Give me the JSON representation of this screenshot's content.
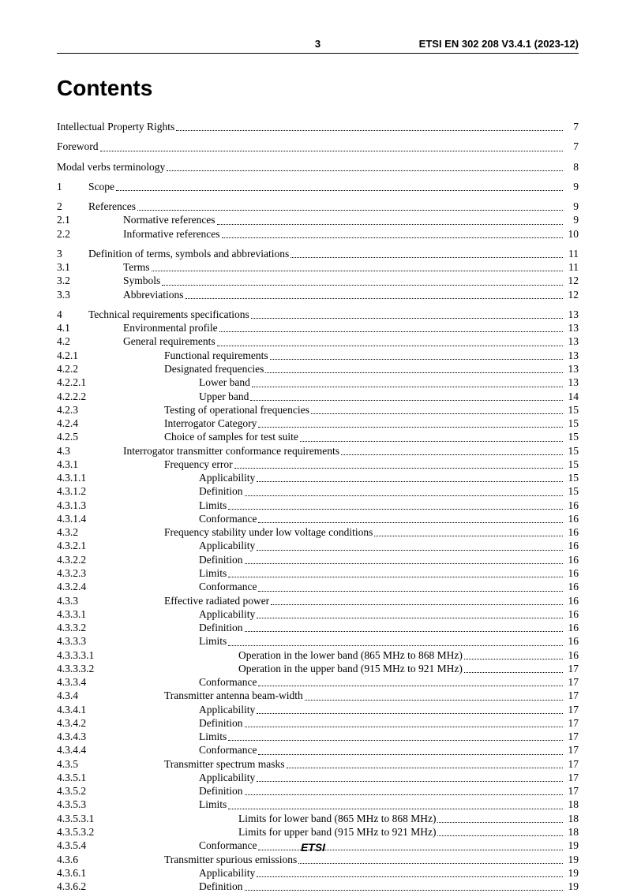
{
  "header": {
    "page_number": "3",
    "doc_id": "ETSI EN 302 208 V3.4.1 (2023-12)"
  },
  "title": "Contents",
  "footer": "ETSI",
  "indents": {
    "l0": 0,
    "l1": 28,
    "l2": 56,
    "l3": 80,
    "l4": 110
  },
  "num_col_width": {
    "front": 0,
    "s1": 40,
    "s2": 56,
    "s3": 80,
    "s4": 100,
    "s5": 120
  },
  "toc": [
    {
      "block": [
        {
          "num": "",
          "title": "Intellectual Property Rights",
          "page": "7",
          "indent": "l0",
          "numw": "front"
        }
      ]
    },
    {
      "block": [
        {
          "num": "",
          "title": "Foreword",
          "page": "7",
          "indent": "l0",
          "numw": "front"
        }
      ]
    },
    {
      "block": [
        {
          "num": "",
          "title": "Modal verbs terminology",
          "page": "8",
          "indent": "l0",
          "numw": "front"
        }
      ]
    },
    {
      "block": [
        {
          "num": "1",
          "title": "Scope",
          "page": "9",
          "indent": "l0",
          "numw": "s1"
        }
      ]
    },
    {
      "block": [
        {
          "num": "2",
          "title": "References",
          "page": "9",
          "indent": "l0",
          "numw": "s1"
        },
        {
          "num": "2.1",
          "title": "Normative references",
          "page": "9",
          "indent": "l1",
          "numw": "s2"
        },
        {
          "num": "2.2",
          "title": "Informative references",
          "page": "10",
          "indent": "l1",
          "numw": "s2"
        }
      ]
    },
    {
      "block": [
        {
          "num": "3",
          "title": "Definition of terms, symbols and abbreviations",
          "page": "11",
          "indent": "l0",
          "numw": "s1"
        },
        {
          "num": "3.1",
          "title": "Terms",
          "page": "11",
          "indent": "l1",
          "numw": "s2"
        },
        {
          "num": "3.2",
          "title": "Symbols",
          "page": "12",
          "indent": "l1",
          "numw": "s2"
        },
        {
          "num": "3.3",
          "title": "Abbreviations",
          "page": "12",
          "indent": "l1",
          "numw": "s2"
        }
      ]
    },
    {
      "block": [
        {
          "num": "4",
          "title": "Technical requirements specifications",
          "page": "13",
          "indent": "l0",
          "numw": "s1"
        },
        {
          "num": "4.1",
          "title": "Environmental profile",
          "page": "13",
          "indent": "l1",
          "numw": "s2"
        },
        {
          "num": "4.2",
          "title": "General requirements",
          "page": "13",
          "indent": "l1",
          "numw": "s2"
        },
        {
          "num": "4.2.1",
          "title": "Functional requirements",
          "page": "13",
          "indent": "l2",
          "numw": "s3"
        },
        {
          "num": "4.2.2",
          "title": "Designated frequencies",
          "page": "13",
          "indent": "l2",
          "numw": "s3"
        },
        {
          "num": "4.2.2.1",
          "title": "Lower band",
          "page": "13",
          "indent": "l3",
          "numw": "s4"
        },
        {
          "num": "4.2.2.2",
          "title": "Upper band",
          "page": "14",
          "indent": "l3",
          "numw": "s4"
        },
        {
          "num": "4.2.3",
          "title": "Testing of operational frequencies",
          "page": "15",
          "indent": "l2",
          "numw": "s3"
        },
        {
          "num": "4.2.4",
          "title": "Interrogator Category",
          "page": "15",
          "indent": "l2",
          "numw": "s3"
        },
        {
          "num": "4.2.5",
          "title": "Choice of samples for test suite",
          "page": "15",
          "indent": "l2",
          "numw": "s3"
        },
        {
          "num": "4.3",
          "title": "Interrogator transmitter conformance requirements",
          "page": "15",
          "indent": "l1",
          "numw": "s2"
        },
        {
          "num": "4.3.1",
          "title": "Frequency error",
          "page": "15",
          "indent": "l2",
          "numw": "s3"
        },
        {
          "num": "4.3.1.1",
          "title": "Applicability",
          "page": "15",
          "indent": "l3",
          "numw": "s4"
        },
        {
          "num": "4.3.1.2",
          "title": "Definition",
          "page": "15",
          "indent": "l3",
          "numw": "s4"
        },
        {
          "num": "4.3.1.3",
          "title": "Limits",
          "page": "16",
          "indent": "l3",
          "numw": "s4"
        },
        {
          "num": "4.3.1.4",
          "title": "Conformance",
          "page": "16",
          "indent": "l3",
          "numw": "s4"
        },
        {
          "num": "4.3.2",
          "title": "Frequency stability under low voltage conditions",
          "page": "16",
          "indent": "l2",
          "numw": "s3"
        },
        {
          "num": "4.3.2.1",
          "title": "Applicability",
          "page": "16",
          "indent": "l3",
          "numw": "s4"
        },
        {
          "num": "4.3.2.2",
          "title": "Definition",
          "page": "16",
          "indent": "l3",
          "numw": "s4"
        },
        {
          "num": "4.3.2.3",
          "title": "Limits",
          "page": "16",
          "indent": "l3",
          "numw": "s4"
        },
        {
          "num": "4.3.2.4",
          "title": "Conformance",
          "page": "16",
          "indent": "l3",
          "numw": "s4"
        },
        {
          "num": "4.3.3",
          "title": "Effective radiated power",
          "page": "16",
          "indent": "l2",
          "numw": "s3"
        },
        {
          "num": "4.3.3.1",
          "title": "Applicability",
          "page": "16",
          "indent": "l3",
          "numw": "s4"
        },
        {
          "num": "4.3.3.2",
          "title": "Definition",
          "page": "16",
          "indent": "l3",
          "numw": "s4"
        },
        {
          "num": "4.3.3.3",
          "title": "Limits",
          "page": "16",
          "indent": "l3",
          "numw": "s4"
        },
        {
          "num": "4.3.3.3.1",
          "title": "Operation in the lower band (865 MHz to 868 MHz)",
          "page": "16",
          "indent": "l4",
          "numw": "s5"
        },
        {
          "num": "4.3.3.3.2",
          "title": "Operation in the upper band (915 MHz to 921 MHz)",
          "page": "17",
          "indent": "l4",
          "numw": "s5"
        },
        {
          "num": "4.3.3.4",
          "title": "Conformance",
          "page": "17",
          "indent": "l3",
          "numw": "s4"
        },
        {
          "num": "4.3.4",
          "title": "Transmitter antenna beam-width",
          "page": "17",
          "indent": "l2",
          "numw": "s3"
        },
        {
          "num": "4.3.4.1",
          "title": "Applicability",
          "page": "17",
          "indent": "l3",
          "numw": "s4"
        },
        {
          "num": "4.3.4.2",
          "title": "Definition",
          "page": "17",
          "indent": "l3",
          "numw": "s4"
        },
        {
          "num": "4.3.4.3",
          "title": "Limits",
          "page": "17",
          "indent": "l3",
          "numw": "s4"
        },
        {
          "num": "4.3.4.4",
          "title": "Conformance",
          "page": "17",
          "indent": "l3",
          "numw": "s4"
        },
        {
          "num": "4.3.5",
          "title": "Transmitter spectrum masks",
          "page": "17",
          "indent": "l2",
          "numw": "s3"
        },
        {
          "num": "4.3.5.1",
          "title": "Applicability",
          "page": "17",
          "indent": "l3",
          "numw": "s4"
        },
        {
          "num": "4.3.5.2",
          "title": "Definition",
          "page": "17",
          "indent": "l3",
          "numw": "s4"
        },
        {
          "num": "4.3.5.3",
          "title": "Limits",
          "page": "18",
          "indent": "l3",
          "numw": "s4"
        },
        {
          "num": "4.3.5.3.1",
          "title": "Limits for lower band (865 MHz to 868 MHz)",
          "page": "18",
          "indent": "l4",
          "numw": "s5"
        },
        {
          "num": "4.3.5.3.2",
          "title": "Limits for upper band (915 MHz to 921 MHz)",
          "page": "18",
          "indent": "l4",
          "numw": "s5"
        },
        {
          "num": "4.3.5.4",
          "title": "Conformance",
          "page": "19",
          "indent": "l3",
          "numw": "s4"
        },
        {
          "num": "4.3.6",
          "title": "Transmitter spurious emissions",
          "page": "19",
          "indent": "l2",
          "numw": "s3"
        },
        {
          "num": "4.3.6.1",
          "title": "Applicability",
          "page": "19",
          "indent": "l3",
          "numw": "s4"
        },
        {
          "num": "4.3.6.2",
          "title": "Definition",
          "page": "19",
          "indent": "l3",
          "numw": "s4"
        }
      ]
    }
  ]
}
